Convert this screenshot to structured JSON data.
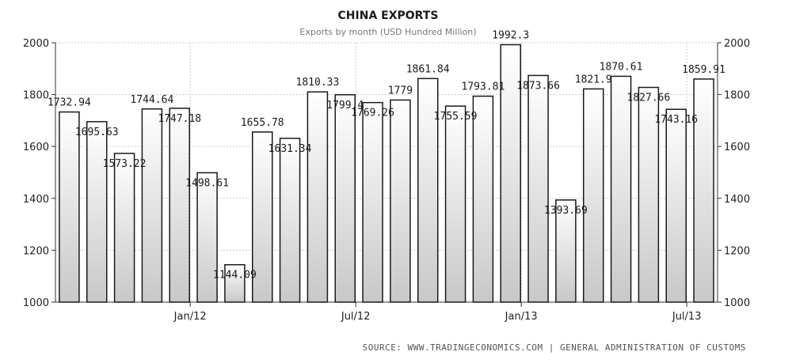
{
  "chart_data": {
    "type": "bar",
    "title": "CHINA EXPORTS",
    "subtitle": "Exports by month (USD Hundred Million)",
    "ylim": [
      1000,
      2000
    ],
    "yticks": [
      1000,
      1200,
      1400,
      1600,
      1800,
      2000
    ],
    "y_axis_sides": [
      "left",
      "right"
    ],
    "grid": true,
    "x_tick_labels": [
      {
        "label": "Jan/12",
        "index": 5
      },
      {
        "label": "Jul/12",
        "index": 11
      },
      {
        "label": "Jan/13",
        "index": 17
      },
      {
        "label": "Jul/13",
        "index": 23
      }
    ],
    "values": [
      1732.94,
      1695.63,
      1573.22,
      1744.64,
      1747.18,
      1498.61,
      1144.09,
      1655.78,
      1631.34,
      1810.33,
      1799.4,
      1769.26,
      1779,
      1861.84,
      1755.59,
      1793.81,
      1992.3,
      1873.66,
      1393.69,
      1821.9,
      1870.61,
      1827.66,
      1743.16,
      1859.91
    ],
    "data_labels": [
      "1732.94",
      "1695.63",
      "1573.22",
      "1744.64",
      "1747.18",
      "1498.61",
      "1144.09",
      "1655.78",
      "1631.34",
      "1810.33",
      "1799.4",
      "1769.26",
      "1779",
      "1861.84",
      "1755.59",
      "1793.81",
      "1992.3",
      "1873.66",
      "1393.69",
      "1821.9",
      "1870.61",
      "1827.66",
      "1743.16",
      "1859.91"
    ],
    "source": "SOURCE: WWW.TRADINGECONOMICS.COM | GENERAL ADMINISTRATION OF CUSTOMS"
  }
}
